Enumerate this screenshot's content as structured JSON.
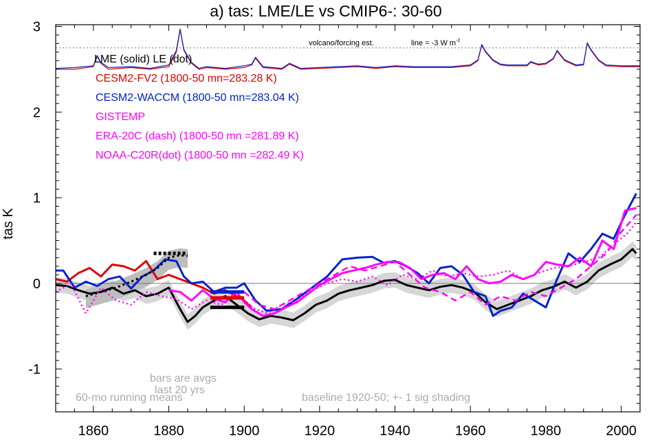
{
  "chart_data": {
    "type": "line",
    "title": "a) tas: LME/LE vs CMIP6-: 30-60",
    "ylabel": "tas K",
    "xlim": [
      1850,
      2005
    ],
    "ylim": [
      -1.5,
      3.02
    ],
    "xticks": [
      1860,
      1880,
      1900,
      1920,
      1940,
      1960,
      1980,
      2000
    ],
    "yticks": [
      -1,
      0,
      1,
      2,
      3
    ],
    "grid": false,
    "legend": [
      {
        "text": "LME (solid)   LE (dot)",
        "color": "#000000"
      },
      {
        "text": "CESM2-FV2 (1800-50 mn=283.28 K)",
        "color": "#e00000"
      },
      {
        "text": "CESM2-WACCM (1800-50 mn=283.04 K)",
        "color": "#0022cc"
      },
      {
        "text": "GISTEMP",
        "color": "#ff00ff"
      },
      {
        "text": "ERA-20C (dash) (1800-50 mn =281.89 K)",
        "color": "#ff00ff"
      },
      {
        "text": "NOAA-C20R(dot) (1800-50 mn =282.49 K)",
        "color": "#ff00ff"
      }
    ],
    "annotations": {
      "forcing_label": "volcano/forcing est.",
      "forcing_line": "line = -3 W m",
      "forcing_sup": "-2",
      "bars_note_1": "bars are avgs",
      "bars_note_2": "last 20 yrs",
      "running_mean": "60-mo running means",
      "baseline": "baseline 1920-50; +- 1 sig shading"
    },
    "reference_lines": {
      "zero": 0,
      "forcing_dotted": 2.75,
      "right_edge_gray": 0.75
    },
    "series": [
      {
        "key": "forcing",
        "color": "#cc0000",
        "x": [
          1850,
          1855,
          1860,
          1861,
          1862,
          1864,
          1870,
          1875,
          1880,
          1882,
          1883,
          1884,
          1886,
          1888,
          1890,
          1895,
          1900,
          1902,
          1903,
          1905,
          1910,
          1912,
          1915,
          1920,
          1925,
          1930,
          1935,
          1940,
          1945,
          1950,
          1955,
          1960,
          1962,
          1963,
          1964,
          1966,
          1968,
          1970,
          1975,
          1976,
          1978,
          1980,
          1982,
          1983,
          1985,
          1988,
          1990,
          1991,
          1992,
          1994,
          1996,
          2000,
          2005
        ],
        "y": [
          2.5,
          2.5,
          2.53,
          2.65,
          2.57,
          2.5,
          2.52,
          2.5,
          2.53,
          2.7,
          2.96,
          2.72,
          2.57,
          2.5,
          2.52,
          2.5,
          2.52,
          2.55,
          2.63,
          2.52,
          2.5,
          2.56,
          2.5,
          2.51,
          2.52,
          2.53,
          2.51,
          2.53,
          2.52,
          2.52,
          2.52,
          2.54,
          2.6,
          2.78,
          2.7,
          2.6,
          2.55,
          2.54,
          2.54,
          2.58,
          2.55,
          2.56,
          2.62,
          2.71,
          2.6,
          2.54,
          2.55,
          2.8,
          2.72,
          2.6,
          2.54,
          2.53,
          2.53
        ]
      },
      {
        "key": "forcing_blue",
        "color": "#1122cc",
        "x": [
          1850,
          1855,
          1860,
          1861,
          1862,
          1864,
          1870,
          1875,
          1880,
          1882,
          1883,
          1884,
          1886,
          1888,
          1890,
          1895,
          1900,
          1902,
          1903,
          1905,
          1910,
          1912,
          1915,
          1920,
          1925,
          1930,
          1935,
          1940,
          1945,
          1950,
          1955,
          1960,
          1962,
          1963,
          1964,
          1966,
          1968,
          1970,
          1975,
          1976,
          1978,
          1980,
          1982,
          1983,
          1985,
          1988,
          1990,
          1991,
          1992,
          1994,
          1996,
          2000,
          2005
        ],
        "y": [
          2.51,
          2.52,
          2.54,
          2.66,
          2.58,
          2.52,
          2.53,
          2.51,
          2.55,
          2.72,
          2.97,
          2.73,
          2.58,
          2.51,
          2.53,
          2.51,
          2.54,
          2.56,
          2.64,
          2.53,
          2.51,
          2.57,
          2.51,
          2.52,
          2.53,
          2.54,
          2.52,
          2.54,
          2.53,
          2.53,
          2.53,
          2.55,
          2.61,
          2.79,
          2.71,
          2.61,
          2.56,
          2.55,
          2.55,
          2.59,
          2.56,
          2.57,
          2.63,
          2.72,
          2.61,
          2.55,
          2.56,
          2.81,
          2.73,
          2.61,
          2.55,
          2.54,
          2.54
        ]
      },
      {
        "key": "LME",
        "color": "#000000",
        "width": 3,
        "x": [
          1850,
          1853,
          1856,
          1859,
          1862,
          1865,
          1868,
          1871,
          1874,
          1877,
          1880,
          1883,
          1885,
          1887,
          1889,
          1892,
          1895,
          1898,
          1901,
          1904,
          1907,
          1910,
          1913,
          1916,
          1919,
          1922,
          1925,
          1928,
          1931,
          1934,
          1937,
          1940,
          1943,
          1946,
          1949,
          1952,
          1955,
          1958,
          1961,
          1964,
          1967,
          1970,
          1973,
          1976,
          1979,
          1982,
          1985,
          1988,
          1991,
          1994,
          1997,
          2000,
          2003,
          2004
        ],
        "y": [
          -0.02,
          -0.03,
          -0.08,
          -0.12,
          -0.1,
          -0.05,
          -0.12,
          -0.08,
          -0.15,
          -0.12,
          -0.05,
          -0.3,
          -0.45,
          -0.38,
          -0.28,
          -0.2,
          -0.15,
          -0.25,
          -0.35,
          -0.42,
          -0.38,
          -0.4,
          -0.43,
          -0.35,
          -0.25,
          -0.2,
          -0.12,
          -0.08,
          -0.05,
          -0.02,
          0.03,
          0.04,
          -0.02,
          -0.05,
          -0.08,
          -0.04,
          -0.02,
          -0.05,
          -0.1,
          -0.22,
          -0.3,
          -0.25,
          -0.2,
          -0.15,
          -0.08,
          -0.04,
          0.02,
          -0.05,
          0.02,
          0.15,
          0.22,
          0.28,
          0.4,
          0.35
        ]
      },
      {
        "key": "CESM2-FV2",
        "color": "#e00000",
        "width": 3,
        "x": [
          1850,
          1853,
          1856,
          1859,
          1862,
          1865,
          1868,
          1871,
          1874,
          1877,
          1880,
          1883,
          1886,
          1889,
          1892,
          1895,
          1898,
          1900,
          1902
        ],
        "y": [
          0.05,
          0.02,
          0.12,
          0.18,
          0.08,
          0.22,
          0.2,
          0.15,
          0.26,
          0.05,
          0.1,
          0.05,
          0.0,
          -0.05,
          -0.12,
          -0.08,
          -0.15,
          -0.2,
          -0.28
        ]
      },
      {
        "key": "CESM2-WACCM",
        "color": "#0022cc",
        "width": 3,
        "x": [
          1850,
          1852,
          1855,
          1858,
          1861,
          1864,
          1867,
          1870,
          1873,
          1876,
          1879,
          1882,
          1884,
          1886,
          1889,
          1892,
          1895,
          1898,
          1900,
          1903,
          1906,
          1910,
          1914,
          1918,
          1922,
          1926,
          1930,
          1934,
          1937,
          1940,
          1943,
          1946,
          1949,
          1952,
          1955,
          1958,
          1961,
          1964,
          1966,
          1968,
          1971,
          1974,
          1977,
          1980,
          1983,
          1986,
          1989,
          1992,
          1995,
          1998,
          2001,
          2004
        ],
        "y": [
          0.15,
          0.15,
          -0.05,
          0.02,
          -0.03,
          0.05,
          0.08,
          -0.06,
          0.08,
          0.15,
          0.28,
          0.26,
          0.08,
          0.0,
          0.02,
          -0.1,
          -0.05,
          -0.05,
          0.0,
          -0.2,
          -0.32,
          -0.3,
          -0.18,
          -0.05,
          0.08,
          0.28,
          0.3,
          0.31,
          0.24,
          0.26,
          0.2,
          0.12,
          0.0,
          0.18,
          0.2,
          0.1,
          -0.1,
          -0.15,
          -0.38,
          -0.32,
          -0.28,
          -0.12,
          -0.2,
          -0.28,
          0.05,
          0.35,
          0.25,
          0.4,
          0.58,
          0.52,
          0.8,
          1.05
        ]
      },
      {
        "key": "GISTEMP",
        "color": "#ff00ff",
        "width": 3,
        "x": [
          1880,
          1883,
          1886,
          1889,
          1892,
          1895,
          1898,
          1900,
          1902,
          1905,
          1908,
          1911,
          1914,
          1917,
          1920,
          1923,
          1926,
          1929,
          1932,
          1935,
          1938,
          1941,
          1944,
          1947,
          1950,
          1953,
          1956,
          1959,
          1962,
          1965,
          1968,
          1971,
          1974,
          1977,
          1980,
          1983,
          1986,
          1989,
          1992,
          1995,
          1998,
          2001,
          2004
        ],
        "y": [
          -0.08,
          -0.1,
          -0.2,
          -0.08,
          -0.18,
          -0.22,
          -0.1,
          -0.22,
          -0.3,
          -0.38,
          -0.35,
          -0.28,
          -0.22,
          -0.12,
          -0.02,
          0.05,
          0.12,
          0.15,
          0.18,
          0.22,
          0.25,
          0.25,
          0.18,
          0.05,
          0.1,
          0.12,
          0.05,
          0.2,
          0.05,
          0.0,
          0.02,
          0.1,
          0.05,
          0.1,
          0.25,
          0.22,
          0.2,
          0.3,
          0.2,
          0.5,
          0.4,
          0.85,
          0.88
        ]
      },
      {
        "key": "ERA-20C",
        "color": "#ff00ff",
        "width": 2.5,
        "dash": "9,6",
        "x": [
          1900,
          1904,
          1908,
          1912,
          1916,
          1920,
          1924,
          1928,
          1932,
          1936,
          1940,
          1944,
          1948,
          1952,
          1956,
          1960,
          1964,
          1968,
          1972,
          1976,
          1980,
          1984,
          1988,
          1992,
          1996,
          2000,
          2004
        ],
        "y": [
          -0.1,
          -0.25,
          -0.3,
          -0.2,
          -0.1,
          0.0,
          0.1,
          0.2,
          0.15,
          0.2,
          0.25,
          0.1,
          -0.05,
          -0.1,
          -0.2,
          -0.1,
          -0.25,
          -0.15,
          -0.2,
          -0.1,
          -0.15,
          -0.05,
          0.05,
          0.2,
          0.35,
          0.6,
          0.8
        ]
      },
      {
        "key": "NOAA-C20R",
        "color": "#ff00ff",
        "width": 2.5,
        "dash": "2,4",
        "x": [
          1850,
          1854,
          1858,
          1862,
          1866,
          1870,
          1874,
          1878,
          1882,
          1886,
          1890,
          1894,
          1898,
          1902,
          1906,
          1910,
          1914,
          1918,
          1922,
          1926,
          1930,
          1934,
          1938,
          1942,
          1946,
          1950,
          1954,
          1958,
          1962,
          1966,
          1970,
          1974,
          1978,
          1982,
          1986,
          1990,
          1994,
          1998,
          2002,
          2004
        ],
        "y": [
          -0.1,
          0.0,
          -0.35,
          -0.05,
          -0.2,
          -0.25,
          -0.1,
          -0.15,
          -0.18,
          -0.3,
          -0.2,
          -0.25,
          -0.12,
          -0.28,
          -0.35,
          -0.25,
          -0.2,
          -0.08,
          0.0,
          0.05,
          0.02,
          0.08,
          -0.02,
          0.1,
          0.05,
          0.15,
          0.08,
          0.12,
          0.08,
          0.1,
          0.15,
          0.05,
          0.12,
          0.18,
          0.2,
          0.25,
          0.3,
          0.45,
          0.6,
          0.72
        ]
      },
      {
        "key": "LE",
        "color": "#000000",
        "width": 3,
        "dash": "3,4",
        "x": [
          1858,
          1862,
          1866,
          1870,
          1874,
          1877,
          1880,
          1883,
          1885
        ],
        "y": [
          -0.15,
          -0.1,
          -0.05,
          0.02,
          0.1,
          0.18,
          0.3,
          0.33,
          0.32
        ]
      }
    ],
    "bars": [
      {
        "key": "LME_bar",
        "color": "#000000",
        "x": [
          1891,
          1900
        ],
        "y": -0.28
      },
      {
        "key": "WACCM_bar",
        "color": "#0022cc",
        "x": [
          1891,
          1900
        ],
        "y": -0.1
      },
      {
        "key": "FV2_bar",
        "color": "#e00000",
        "x": [
          1891,
          1900
        ],
        "y": -0.17
      },
      {
        "key": "LE_bar",
        "color": "#000000",
        "x": [
          1876,
          1885
        ],
        "y": 0.35
      }
    ]
  }
}
